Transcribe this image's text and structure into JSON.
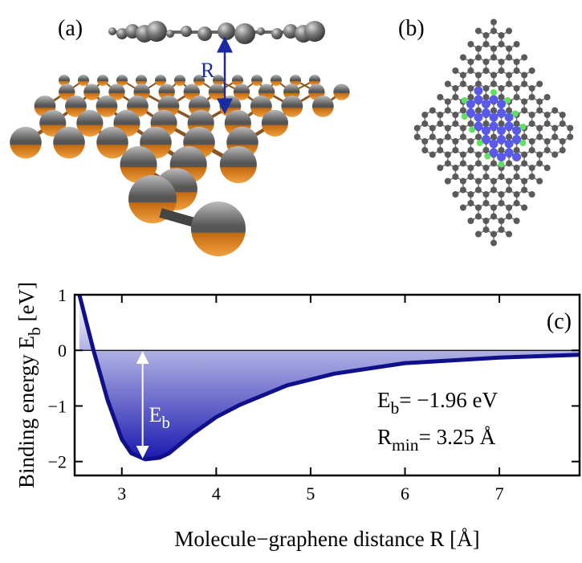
{
  "panels": {
    "a": {
      "label": "(a)",
      "distance_label": "R"
    },
    "b": {
      "label": "(b)"
    }
  },
  "chart_data": {
    "type": "line",
    "panel_label": "(c)",
    "xlabel": "Molecule−graphene distance R [Å]",
    "ylabel": {
      "main": "Binding energy E",
      "sub": "b",
      "tail": " [eV]"
    },
    "x": [
      2.55,
      2.7,
      2.85,
      3.0,
      3.1,
      3.25,
      3.4,
      3.5,
      3.75,
      4.0,
      4.25,
      4.75,
      5.25,
      6.0,
      7.0,
      7.85
    ],
    "values": [
      1.0,
      0.0,
      -0.9,
      -1.6,
      -1.85,
      -1.96,
      -1.93,
      -1.85,
      -1.5,
      -1.2,
      -0.98,
      -0.63,
      -0.42,
      -0.23,
      -0.13,
      -0.08
    ],
    "color": "#10108a",
    "fill": true,
    "zero_line": true,
    "xlim": [
      2.5,
      7.85
    ],
    "ylim": [
      -2.25,
      1
    ],
    "xticks": [
      3,
      4,
      5,
      6,
      7
    ],
    "yticks": [
      1,
      0,
      {
        "value": -1,
        "label": "−1"
      },
      {
        "value": -2,
        "label": "−2"
      }
    ],
    "energy_arrow": {
      "x": 3.22,
      "from": 0,
      "to": -1.96,
      "label": {
        "main": "E",
        "sub": "b"
      }
    },
    "annotations": [
      {
        "main": "E",
        "sub": "b",
        "text": "= −1.96 eV"
      },
      {
        "main": "R",
        "sub": "min",
        "text": "= 3.25 Å"
      }
    ]
  }
}
